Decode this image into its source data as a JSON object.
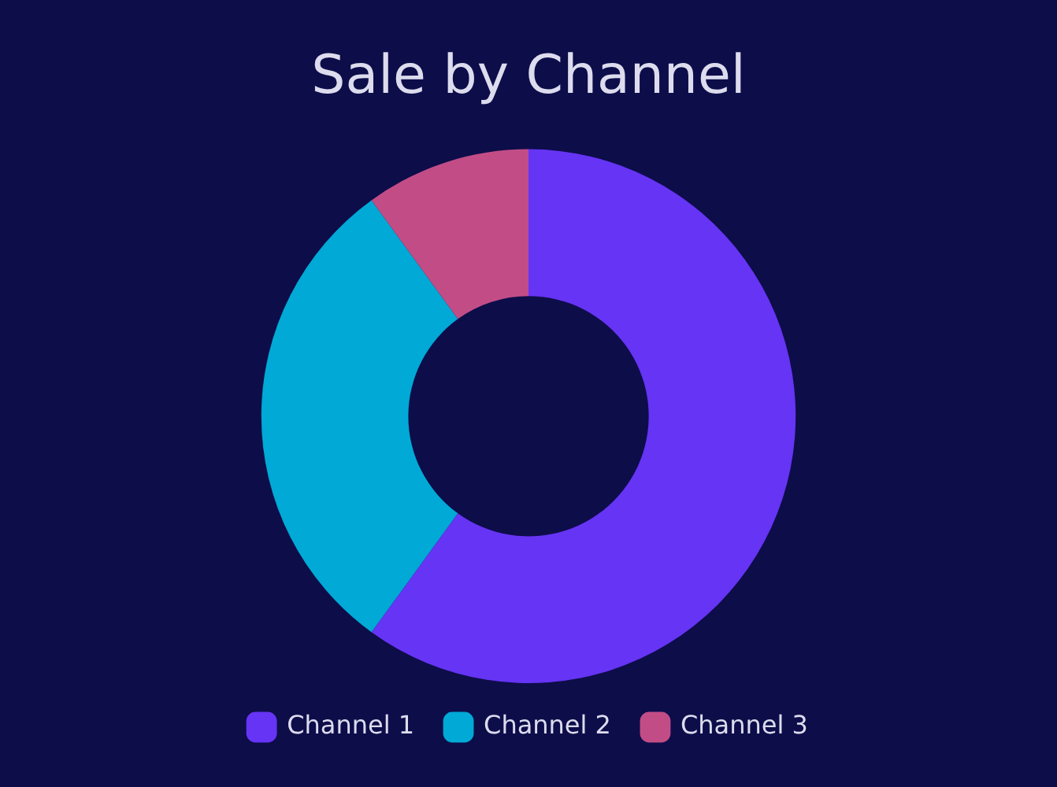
{
  "chart_data": {
    "type": "donut",
    "title": "Sale by Channel",
    "categories": [
      "Channel 1",
      "Channel 2",
      "Channel 3"
    ],
    "values": [
      60,
      30,
      10
    ],
    "colors": [
      "#6634f4",
      "#00a9d6",
      "#c24d86"
    ],
    "legend": "bottom"
  }
}
